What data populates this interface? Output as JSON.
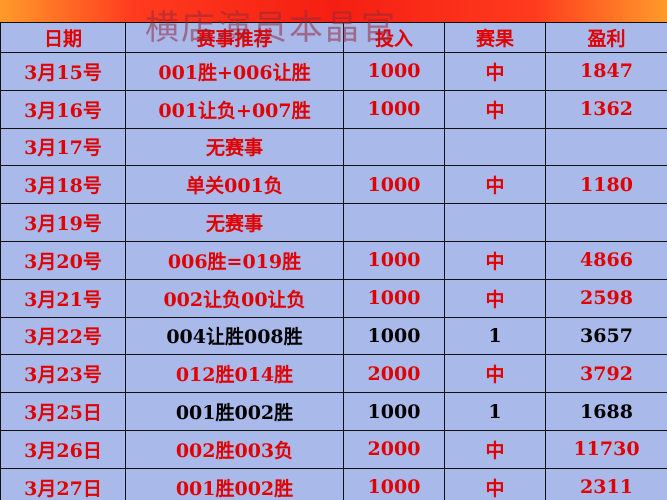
{
  "watermark": "横店演员本晶官",
  "table": {
    "header": [
      "日期",
      "赛事推荐",
      "投入",
      "赛果",
      "盈利"
    ],
    "header_color": "#e00000",
    "rows": [
      {
        "cells": [
          "3月15号",
          "001胜+006让胜",
          "1000",
          "中",
          "1847"
        ],
        "color": "#e00000"
      },
      {
        "cells": [
          "3月16号",
          "001让负+007胜",
          "1000",
          "中",
          "1362"
        ],
        "color": "#e00000"
      },
      {
        "cells": [
          "3月17号",
          "无赛事"
        ],
        "color": "#e00000"
      },
      {
        "cells": [
          "3月18号",
          "单关001负",
          "1000",
          "中",
          "1180"
        ],
        "color": "#e00000"
      },
      {
        "cells": [
          "3月19号",
          "无赛事"
        ],
        "color": "#e00000"
      },
      {
        "cells": [
          "3月20号",
          "006胜=019胜",
          "1000",
          "中",
          "4866"
        ],
        "color": "#e00000"
      },
      {
        "cells": [
          "3月21号",
          "002让负00让负",
          "1000",
          "中",
          "2598"
        ],
        "color": "#e00000"
      },
      {
        "cells": [
          "3月22号",
          "004让胜008胜",
          "1000",
          "1",
          "3657"
        ],
        "color": "#000000"
      },
      {
        "cells": [
          "3月23号",
          "012胜014胜",
          "2000",
          "中",
          "3792"
        ],
        "color": "#e00000"
      },
      {
        "cells": [
          "3月25日",
          "001胜002胜",
          "1000",
          "1",
          "1688"
        ],
        "color": "#000000"
      },
      {
        "cells": [
          "3月26日",
          "002胜003负",
          "2000",
          "中",
          "11730"
        ],
        "color": "#e00000"
      },
      {
        "cells": [
          "3月27日",
          "001胜002胜",
          "1000",
          "中",
          "2311"
        ],
        "color": "#e00000"
      }
    ],
    "date_color": "#e00000",
    "background": "#a9b9ea"
  }
}
